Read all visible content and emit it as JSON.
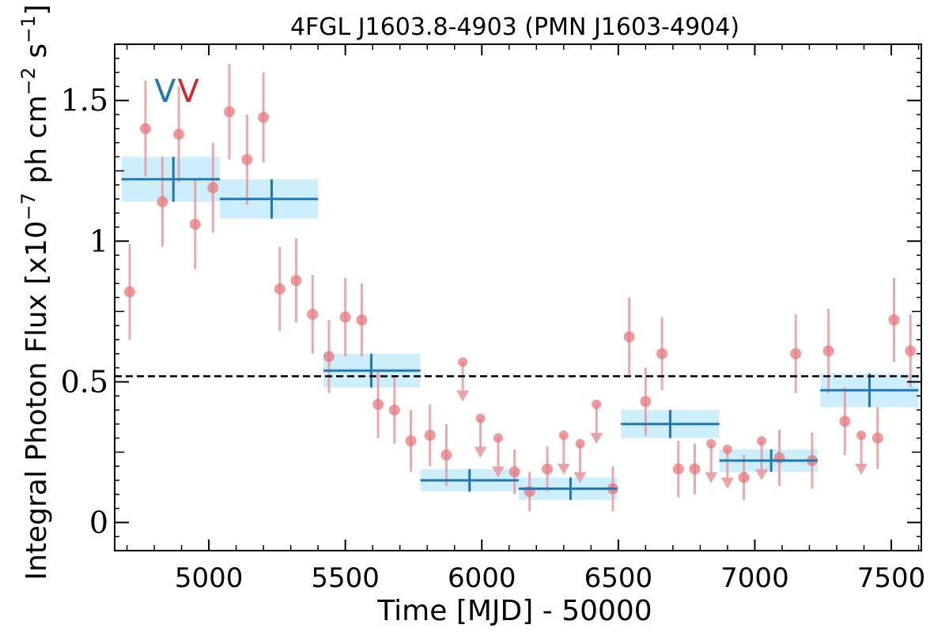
{
  "chart_data": {
    "type": "scatter",
    "title": "4FGL J1603.8-4903 (PMN J1603-4904)",
    "xlabel": "Time [MJD] - 50000",
    "ylabel_parts": {
      "main": "Integral Photon Flux [x10",
      "exp1": "−7",
      "mid": " ph cm",
      "exp2": "−2",
      "mid2": " s",
      "exp3": "−1",
      "end": "]"
    },
    "xlim": [
      4655,
      7610
    ],
    "ylim": [
      -0.1,
      1.7
    ],
    "x_ticks": [
      5000,
      5500,
      6000,
      6500,
      7000,
      7500
    ],
    "x_tick_labels": [
      "5000",
      "5500",
      "6000",
      "6500",
      "7000",
      "7500"
    ],
    "y_ticks": [
      0,
      0.5,
      1,
      1.5
    ],
    "y_tick_labels": [
      "0",
      "0.5",
      "1",
      "1.5"
    ],
    "reference_line": {
      "y": 0.52,
      "style": "dashed",
      "color": "#000000"
    },
    "markers": [
      {
        "label": "V",
        "x": 4840,
        "color": "#1f77b4"
      },
      {
        "label": "V",
        "x": 4925,
        "color": "#d62728"
      }
    ],
    "colors": {
      "point": "#e8777a",
      "errorbar": "#e89b9c",
      "bin": "#1f77b4",
      "band": "#cdeefd"
    },
    "series": [
      {
        "kind": "monthly-points",
        "points": [
          {
            "x": 4710,
            "y": 0.82,
            "yerr": 0.17
          },
          {
            "x": 4768,
            "y": 1.4,
            "yerr": 0.17
          },
          {
            "x": 4830,
            "y": 1.14,
            "yerr": 0.16
          },
          {
            "x": 4890,
            "y": 1.38,
            "yerr": 0.17
          },
          {
            "x": 4950,
            "y": 1.06,
            "yerr": 0.16
          },
          {
            "x": 5015,
            "y": 1.19,
            "yerr": 0.16
          },
          {
            "x": 5075,
            "y": 1.46,
            "yerr": 0.17
          },
          {
            "x": 5140,
            "y": 1.29,
            "yerr": 0.16
          },
          {
            "x": 5200,
            "y": 1.44,
            "yerr": 0.16
          },
          {
            "x": 5260,
            "y": 0.83,
            "yerr": 0.15
          },
          {
            "x": 5320,
            "y": 0.86,
            "yerr": 0.15
          },
          {
            "x": 5380,
            "y": 0.74,
            "yerr": 0.14
          },
          {
            "x": 5440,
            "y": 0.59,
            "yerr": 0.13
          },
          {
            "x": 5500,
            "y": 0.73,
            "yerr": 0.14
          },
          {
            "x": 5560,
            "y": 0.72,
            "yerr": 0.13
          },
          {
            "x": 5620,
            "y": 0.42,
            "yerr": 0.12
          },
          {
            "x": 5680,
            "y": 0.4,
            "yerr": 0.12
          },
          {
            "x": 5740,
            "y": 0.29,
            "yerr": 0.11
          },
          {
            "x": 5810,
            "y": 0.31,
            "yerr": 0.11
          },
          {
            "x": 5870,
            "y": 0.24,
            "yerr": 0.11
          },
          {
            "x": 6120,
            "y": 0.18,
            "yerr": 0.08
          },
          {
            "x": 6175,
            "y": 0.11,
            "yerr": 0.07
          },
          {
            "x": 6240,
            "y": 0.19,
            "yerr": 0.08
          },
          {
            "x": 6480,
            "y": 0.12,
            "yerr": 0.08
          },
          {
            "x": 6540,
            "y": 0.66,
            "yerr": 0.14
          },
          {
            "x": 6600,
            "y": 0.43,
            "yerr": 0.12
          },
          {
            "x": 6660,
            "y": 0.6,
            "yerr": 0.13
          },
          {
            "x": 6720,
            "y": 0.19,
            "yerr": 0.1
          },
          {
            "x": 6780,
            "y": 0.19,
            "yerr": 0.09
          },
          {
            "x": 6960,
            "y": 0.16,
            "yerr": 0.08
          },
          {
            "x": 7090,
            "y": 0.23,
            "yerr": 0.1
          },
          {
            "x": 7150,
            "y": 0.6,
            "yerr": 0.14
          },
          {
            "x": 7210,
            "y": 0.22,
            "yerr": 0.1
          },
          {
            "x": 7270,
            "y": 0.61,
            "yerr": 0.15
          },
          {
            "x": 7330,
            "y": 0.36,
            "yerr": 0.12
          },
          {
            "x": 7450,
            "y": 0.3,
            "yerr": 0.11
          },
          {
            "x": 7510,
            "y": 0.72,
            "yerr": 0.15
          },
          {
            "x": 7570,
            "y": 0.61,
            "yerr": 0.13
          }
        ]
      },
      {
        "kind": "upper-limits",
        "points": [
          {
            "x": 5930,
            "y": 0.57
          },
          {
            "x": 5995,
            "y": 0.37
          },
          {
            "x": 6060,
            "y": 0.3
          },
          {
            "x": 6300,
            "y": 0.31
          },
          {
            "x": 6360,
            "y": 0.28
          },
          {
            "x": 6420,
            "y": 0.42
          },
          {
            "x": 6840,
            "y": 0.28
          },
          {
            "x": 6900,
            "y": 0.26
          },
          {
            "x": 7025,
            "y": 0.29
          },
          {
            "x": 7390,
            "y": 0.31
          }
        ]
      },
      {
        "kind": "binned",
        "bins": [
          {
            "x0": 4680,
            "x1": 5040,
            "xc": 4870,
            "y": 1.22,
            "yerr": 0.08
          },
          {
            "x0": 5040,
            "x1": 5400,
            "xc": 5230,
            "y": 1.15,
            "yerr": 0.07
          },
          {
            "x0": 5420,
            "x1": 5775,
            "xc": 5595,
            "y": 0.54,
            "yerr": 0.06
          },
          {
            "x0": 5775,
            "x1": 6135,
            "xc": 5955,
            "y": 0.15,
            "yerr": 0.04
          },
          {
            "x0": 6135,
            "x1": 6495,
            "xc": 6325,
            "y": 0.12,
            "yerr": 0.04
          },
          {
            "x0": 6510,
            "x1": 6870,
            "xc": 6690,
            "y": 0.35,
            "yerr": 0.05
          },
          {
            "x0": 6870,
            "x1": 7230,
            "xc": 7060,
            "y": 0.22,
            "yerr": 0.04
          },
          {
            "x0": 7240,
            "x1": 7600,
            "xc": 7420,
            "y": 0.47,
            "yerr": 0.06
          }
        ]
      }
    ]
  }
}
